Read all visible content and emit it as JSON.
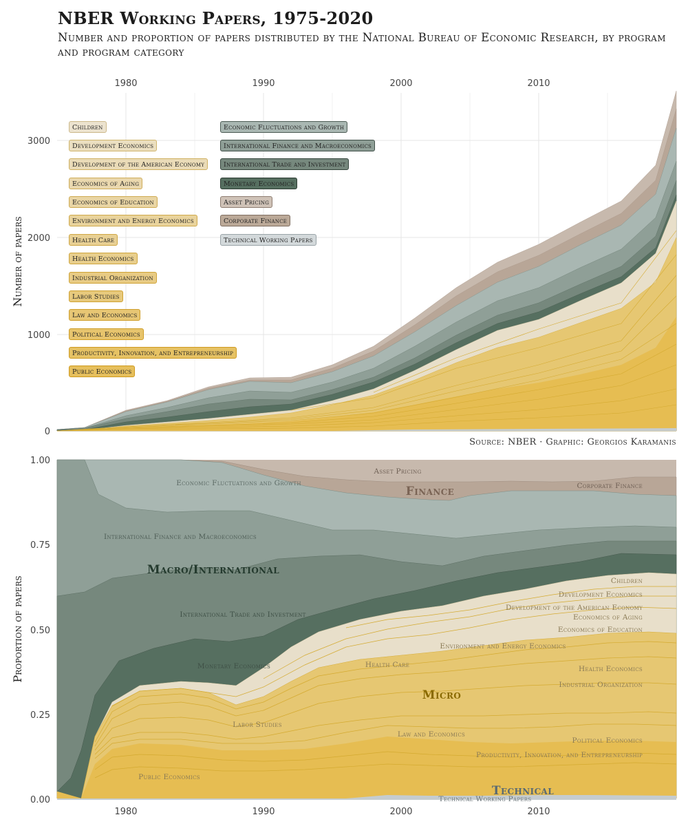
{
  "header": {
    "title": "NBER Working Papers, 1975-2020",
    "subtitle": "Number and proportion of papers distributed by the National Bureau of Economic Research, by program and program category"
  },
  "source": "Source: NBER · Graphic: Georgios Karamanis",
  "colors": {
    "micro": "#e6bd52",
    "micro_light": "#e8dfca",
    "micro_line": "#d6ac35",
    "macro_1": "#a9b7b2",
    "macro_2": "#8f9f97",
    "macro_3": "#76887d",
    "macro_4": "#566f60",
    "finance_1": "#c7b9ad",
    "finance_2": "#b8a697",
    "technical": "#c5cccf",
    "grid": "#e6e6e6"
  },
  "legend": {
    "micro": [
      "Children",
      "Development Economics",
      "Development of the American Economy",
      "Economics of Aging",
      "Economics of Education",
      "Environment and Energy Economics",
      "Health Care",
      "Health Economics",
      "Industrial Organization",
      "Labor Studies",
      "Law and Economics",
      "Political Economics",
      "Productivity, Innovation, and Entrepreneurship",
      "Public Economics"
    ],
    "macro_finance_tech": [
      "Economic Fluctuations and Growth",
      "International Finance and Macroeconomics",
      "International Trade and Investment",
      "Monetary Economics",
      "Asset Pricing",
      "Corporate Finance",
      "Technical Working Papers"
    ]
  },
  "top_chart": {
    "ylabel": "Number of papers",
    "x_ticks": [
      "1980",
      "1990",
      "2000",
      "2010"
    ],
    "y_ticks": [
      "0",
      "1000",
      "2000",
      "3000"
    ]
  },
  "bottom_chart": {
    "ylabel": "Proportion of papers",
    "x_ticks": [
      "1980",
      "1990",
      "2000",
      "2010"
    ],
    "y_ticks": [
      "0.00",
      "0.25",
      "0.50",
      "0.75",
      "1.00"
    ],
    "category_labels": {
      "finance": "Finance",
      "macro": "Macro/International",
      "micro": "Micro",
      "technical": "Technical"
    },
    "program_labels": {
      "asset_pricing": "Asset Pricing",
      "corporate_finance": "Corporate Finance",
      "efg": "Economic Fluctuations and Growth",
      "ifm": "International Finance and Macroeconomics",
      "iti": "International Trade and Investment",
      "monetary": "Monetary Economics",
      "children": "Children",
      "dev": "Development Economics",
      "dae": "Development of the American Economy",
      "aging": "Economics of Aging",
      "education": "Economics of Education",
      "environment": "Environment and Energy Economics",
      "health_care": "Health Care",
      "health_econ": "Health Economics",
      "io": "Industrial Organization",
      "labor": "Labor Studies",
      "law": "Law and Economics",
      "political": "Political Economics",
      "productivity": "Productivity, Innovation, and Entrepreneurship",
      "public": "Public Economics",
      "technical_wp": "Technical Working Papers"
    }
  },
  "chart_data": [
    {
      "type": "area",
      "stacked": true,
      "xlim": [
        1975,
        2020
      ],
      "ylim": [
        0,
        3500
      ],
      "ylabel": "Number of papers",
      "x": [
        1975,
        1977,
        1980,
        1983,
        1986,
        1989,
        1992,
        1995,
        1998,
        2001,
        2004,
        2007,
        2010,
        2013,
        2016,
        2018,
        2020
      ],
      "series": [
        {
          "name": "Micro",
          "values": [
            3,
            15,
            45,
            85,
            115,
            155,
            210,
            320,
            460,
            680,
            880,
            1080,
            1240,
            1430,
            1640,
            1870,
            2330
          ]
        },
        {
          "name": "Macro/International",
          "values": [
            20,
            25,
            130,
            190,
            260,
            350,
            290,
            270,
            285,
            370,
            490,
            560,
            570,
            610,
            640,
            680,
            800
          ]
        },
        {
          "name": "Finance",
          "values": [
            0,
            0,
            3,
            5,
            10,
            20,
            40,
            60,
            80,
            110,
            150,
            180,
            200,
            220,
            250,
            280,
            370
          ]
        },
        {
          "name": "Technical",
          "values": [
            0,
            0,
            2,
            3,
            3,
            5,
            8,
            10,
            12,
            15,
            18,
            20,
            20,
            20,
            20,
            20,
            20
          ]
        }
      ]
    },
    {
      "type": "area",
      "stacked": true,
      "xlim": [
        1975,
        2020
      ],
      "ylim": [
        0,
        1
      ],
      "ylabel": "Proportion of papers",
      "x": [
        1975,
        1977,
        1979,
        1982,
        1985,
        1988,
        1991,
        1994,
        1997,
        2000,
        2003,
        2006,
        2009,
        2012,
        2015,
        2018,
        2020
      ],
      "series": [
        {
          "name": "Micro",
          "values": [
            0.02,
            0.0,
            0.3,
            0.33,
            0.34,
            0.3,
            0.37,
            0.45,
            0.5,
            0.55,
            0.58,
            0.59,
            0.61,
            0.63,
            0.65,
            0.66,
            0.66
          ]
        },
        {
          "name": "Macro/International",
          "values": [
            0.98,
            1.0,
            0.69,
            0.66,
            0.64,
            0.66,
            0.57,
            0.47,
            0.39,
            0.32,
            0.28,
            0.27,
            0.25,
            0.23,
            0.22,
            0.21,
            0.23
          ]
        },
        {
          "name": "Finance",
          "values": [
            0.0,
            0.0,
            0.01,
            0.01,
            0.02,
            0.04,
            0.06,
            0.08,
            0.11,
            0.13,
            0.14,
            0.13,
            0.13,
            0.13,
            0.12,
            0.12,
            0.1
          ]
        },
        {
          "name": "Technical",
          "values": [
            0.0,
            0.0,
            0.0,
            0.0,
            0.0,
            0.0,
            0.0,
            0.0,
            0.0,
            0.0,
            0.0,
            0.01,
            0.01,
            0.01,
            0.01,
            0.01,
            0.01
          ]
        }
      ]
    }
  ]
}
